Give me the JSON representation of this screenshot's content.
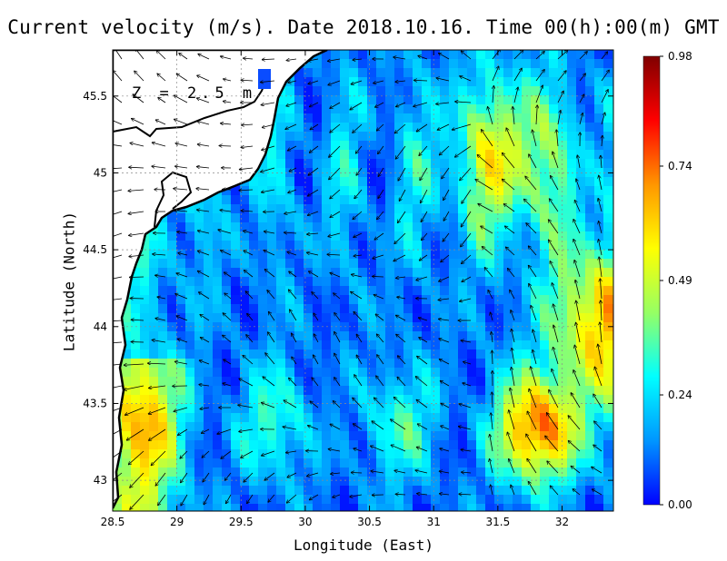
{
  "title": "Current velocity (m/s). Date 2018.10.16. Time 00(h):00(m) GMT",
  "depth_label": "Z = 2.5 m",
  "xlabel": "Longitude (East)",
  "ylabel": "Latitude (North)",
  "chart_data": {
    "type": "heatmap",
    "title": "Current velocity (m/s). Date 2018.10.16. Time 00(h):00(m) GMT",
    "xlabel": "Longitude (East)",
    "ylabel": "Latitude (North)",
    "xlim": [
      28.5,
      32.4
    ],
    "ylim": [
      42.8,
      45.8
    ],
    "x_ticks": [
      "28.5",
      "29",
      "29.5",
      "30",
      "30.5",
      "31",
      "31.5",
      "32"
    ],
    "x_tick_values": [
      28.5,
      29,
      29.5,
      30,
      30.5,
      31,
      31.5,
      32
    ],
    "y_ticks": [
      "43",
      "43.5",
      "44",
      "44.5",
      "45",
      "45.5"
    ],
    "y_tick_values": [
      43,
      43.5,
      44,
      44.5,
      45,
      45.5
    ],
    "grid": true,
    "colorbar": {
      "min": 0.0,
      "max": 0.98,
      "tick_labels": [
        "0.00",
        "0.24",
        "0.49",
        "0.74",
        "0.98"
      ],
      "tick_values": [
        0.0,
        0.24,
        0.49,
        0.74,
        0.98
      ],
      "colormap": [
        "#0000ff",
        "#0096ff",
        "#00ffff",
        "#96ff64",
        "#ffff00",
        "#ff9600",
        "#ff0000",
        "#800000"
      ]
    },
    "colors": {
      "land": "#ffffff",
      "coastline": "#000000",
      "grid": "#8c8c8c"
    }
  }
}
